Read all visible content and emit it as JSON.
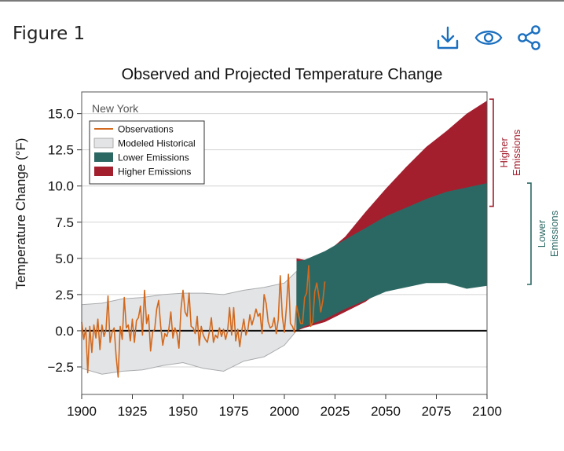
{
  "header": {
    "figure_label": "Figure 1",
    "icons": [
      {
        "name": "download-icon",
        "color": "#1a6fbf"
      },
      {
        "name": "eye-icon",
        "color": "#1a6fbf"
      },
      {
        "name": "share-icon",
        "color": "#1a6fbf"
      }
    ]
  },
  "chart_data": {
    "type": "area",
    "title": "Observed and Projected Temperature Change",
    "panel_label": "New York",
    "xlabel": "",
    "ylabel": "Temperature Change (°F)",
    "xlim": [
      1900,
      2100
    ],
    "ylim": [
      -4.4,
      16.5
    ],
    "xticks": [
      1900,
      1925,
      1950,
      1975,
      2000,
      2025,
      2050,
      2075,
      2100
    ],
    "yticks": [
      -2.5,
      0.0,
      2.5,
      5.0,
      7.5,
      10.0,
      12.5,
      15.0
    ],
    "ytick_labels": [
      "−2.5",
      "0.0",
      "2.5",
      "5.0",
      "7.5",
      "10.0",
      "12.5",
      "15.0"
    ],
    "grid": "horizontal",
    "legend_position": "top-left",
    "legend": [
      {
        "label": "Observations",
        "color": "#d2691e",
        "kind": "line"
      },
      {
        "label": "Modeled Historical",
        "color": "#e3e4e5",
        "kind": "box"
      },
      {
        "label": "Lower Emissions",
        "color": "#2c6863",
        "kind": "box"
      },
      {
        "label": "Higher Emissions",
        "color": "#a31f2e",
        "kind": "box"
      }
    ],
    "series": [
      {
        "name": "Modeled Historical",
        "color": "#e3e4e5",
        "x": [
          1900,
          1910,
          1920,
          1930,
          1940,
          1950,
          1960,
          1970,
          1980,
          1990,
          2000,
          2006
        ],
        "upper": [
          1.8,
          1.9,
          2.2,
          2.3,
          2.5,
          2.6,
          2.6,
          2.5,
          2.8,
          3.0,
          3.3,
          4.1
        ],
        "lower": [
          -2.6,
          -3.0,
          -2.8,
          -2.7,
          -2.4,
          -2.2,
          -2.6,
          -2.8,
          -2.1,
          -1.8,
          -1.0,
          0.0
        ]
      },
      {
        "name": "Higher Emissions",
        "color": "#a31f2e",
        "x": [
          2006,
          2010,
          2020,
          2030,
          2040,
          2050,
          2060,
          2070,
          2080,
          2090,
          2100
        ],
        "upper": [
          5.0,
          4.9,
          5.3,
          6.5,
          8.2,
          9.8,
          11.3,
          12.7,
          13.8,
          15.0,
          15.9
        ],
        "lower": [
          0.0,
          0.2,
          0.6,
          1.3,
          2.0,
          3.0,
          3.8,
          5.0,
          6.3,
          7.7,
          8.9
        ]
      },
      {
        "name": "Lower Emissions",
        "color": "#2c6863",
        "x": [
          2006,
          2010,
          2020,
          2030,
          2040,
          2050,
          2060,
          2070,
          2080,
          2090,
          2100
        ],
        "upper": [
          4.8,
          4.9,
          5.5,
          6.3,
          7.1,
          7.9,
          8.5,
          9.1,
          9.6,
          9.9,
          10.2
        ],
        "lower": [
          0.0,
          0.3,
          0.8,
          1.5,
          2.1,
          2.7,
          3.0,
          3.3,
          3.3,
          2.9,
          3.1
        ]
      },
      {
        "name": "Observations",
        "color": "#d2691e",
        "x": [
          1900,
          1901,
          1902,
          1903,
          1904,
          1905,
          1906,
          1907,
          1908,
          1909,
          1910,
          1911,
          1912,
          1913,
          1914,
          1915,
          1916,
          1917,
          1918,
          1919,
          1920,
          1921,
          1922,
          1923,
          1924,
          1925,
          1926,
          1927,
          1928,
          1929,
          1930,
          1931,
          1932,
          1933,
          1934,
          1935,
          1936,
          1937,
          1938,
          1939,
          1940,
          1941,
          1942,
          1943,
          1944,
          1945,
          1946,
          1947,
          1948,
          1949,
          1950,
          1951,
          1952,
          1953,
          1954,
          1955,
          1956,
          1957,
          1958,
          1959,
          1960,
          1961,
          1962,
          1963,
          1964,
          1965,
          1966,
          1967,
          1968,
          1969,
          1970,
          1971,
          1972,
          1973,
          1974,
          1975,
          1976,
          1977,
          1978,
          1979,
          1980,
          1981,
          1982,
          1983,
          1984,
          1985,
          1986,
          1987,
          1988,
          1989,
          1990,
          1991,
          1992,
          1993,
          1994,
          1995,
          1996,
          1997,
          1998,
          1999,
          2000,
          2001,
          2002,
          2003,
          2004,
          2005,
          2006,
          2007,
          2008,
          2009,
          2010,
          2011,
          2012,
          2013,
          2014,
          2015,
          2016,
          2017,
          2018,
          2019,
          2020
        ],
        "values": [
          0.6,
          -0.6,
          0.2,
          -2.9,
          0.3,
          -1.5,
          0.4,
          -0.5,
          0.8,
          -1.3,
          0.4,
          -0.4,
          0.1,
          2.4,
          -0.8,
          -0.1,
          0.2,
          -1.8,
          -3.2,
          0.3,
          -0.6,
          2.3,
          0.2,
          0.4,
          -0.7,
          0.8,
          -0.8,
          0.7,
          0.9,
          1.7,
          -0.3,
          2.8,
          0.5,
          1.1,
          -1.4,
          -0.1,
          0.1,
          1.5,
          2.1,
          0.3,
          -1.0,
          -0.2,
          -0.4,
          0.1,
          1.3,
          -0.5,
          0.2,
          -0.2,
          -1.2,
          1.5,
          2.8,
          1.3,
          1.0,
          2.6,
          0.3,
          0.2,
          -0.2,
          1.0,
          -1.0,
          0.3,
          -0.3,
          -0.6,
          -0.8,
          -0.1,
          0.9,
          -0.8,
          -0.3,
          -0.5,
          0.2,
          -0.4,
          0.1,
          -0.6,
          0.0,
          1.6,
          -0.3,
          1.6,
          -0.7,
          0.1,
          -1.1,
          0.0,
          0.8,
          -0.3,
          0.1,
          1.1,
          0.4,
          0.9,
          1.5,
          1.0,
          1.2,
          -0.2,
          2.5,
          1.9,
          0.6,
          0.2,
          0.3,
          0.9,
          -0.2,
          0.8,
          3.8,
          1.0,
          -0.1,
          1.6,
          3.9,
          0.5,
          0.3,
          -0.1,
          1.7,
          1.1,
          0.5,
          0.5,
          2.3,
          2.6,
          4.5,
          0.3,
          0.6,
          2.7,
          3.3,
          2.4,
          1.3,
          2.1,
          3.4
        ]
      }
    ],
    "zero_line": 0.0,
    "annotations": [
      {
        "text_lines": [
          "Higher",
          "Emissions"
        ],
        "color": "#a31f2e",
        "y_range": [
          8.6,
          16.0
        ]
      },
      {
        "text_lines": [
          "Lower",
          "Emissions"
        ],
        "color": "#2c6863",
        "y_range": [
          3.2,
          10.2
        ]
      }
    ]
  }
}
